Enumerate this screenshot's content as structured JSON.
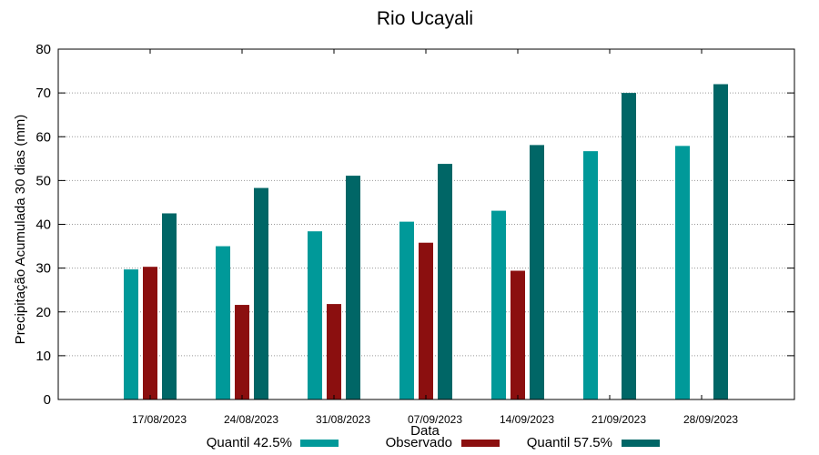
{
  "chart_data": {
    "type": "bar",
    "title": "Rio Ucayali",
    "xlabel": "Data",
    "ylabel": "Precipitação Acumulada 30 dias (mm)",
    "ylim": [
      0,
      80
    ],
    "yticks": [
      "0",
      "10",
      "20",
      "30",
      "40",
      "50",
      "60",
      "70",
      "80"
    ],
    "grid": true,
    "legend_position": "bottom",
    "categories": [
      "17/08/2023",
      "24/08/2023",
      "31/08/2023",
      "07/09/2023",
      "14/09/2023",
      "21/09/2023",
      "28/09/2023"
    ],
    "series": [
      {
        "name": "Quantil 42.5%",
        "color": "#009999",
        "values": [
          29.7,
          35.0,
          38.4,
          40.6,
          43.1,
          56.7,
          57.9
        ]
      },
      {
        "name": "Observado",
        "color": "#8b0f0f",
        "values": [
          30.3,
          21.6,
          21.8,
          35.8,
          29.4,
          null,
          null
        ]
      },
      {
        "name": "Quantil 57.5%",
        "color": "#006666",
        "values": [
          42.5,
          48.3,
          51.1,
          53.8,
          58.1,
          70.0,
          72.0
        ]
      }
    ]
  }
}
